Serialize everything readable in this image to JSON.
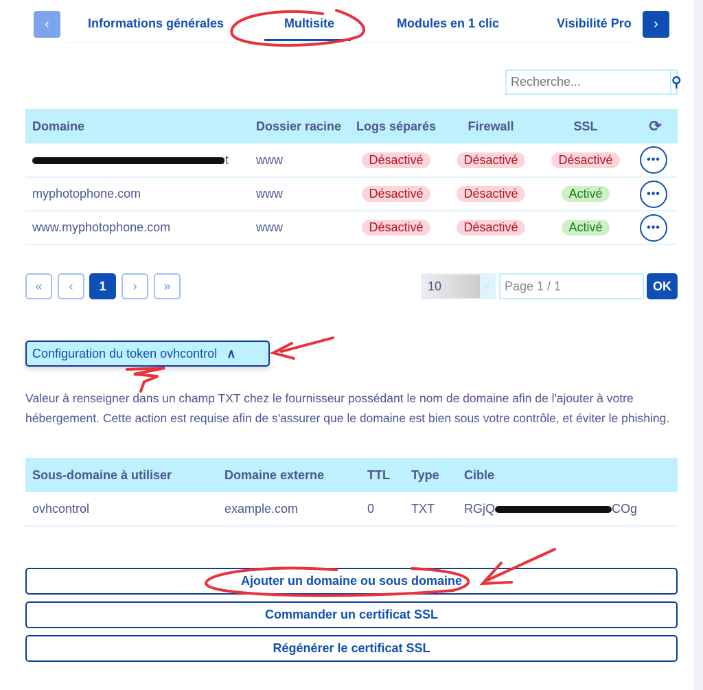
{
  "tabs": {
    "prev": "‹",
    "next": "›",
    "items": [
      "Informations générales",
      "Multisite",
      "Modules en 1 clic",
      "Visibilité Pro"
    ],
    "active": 1
  },
  "search": {
    "placeholder": "Recherche...",
    "icon": "search-icon"
  },
  "domains_table": {
    "headers": [
      "Domaine",
      "Dossier racine",
      "Logs séparés",
      "Firewall",
      "SSL"
    ],
    "refresh_icon": "refresh-icon",
    "rows": [
      {
        "domain": "…net",
        "root": "www",
        "logs": "Désactivé",
        "firewall": "Désactivé",
        "ssl": "Désactivé",
        "ssl_on": false
      },
      {
        "domain": "myphotophone.com",
        "root": "www",
        "logs": "Désactivé",
        "firewall": "Désactivé",
        "ssl": "Activé",
        "ssl_on": true
      },
      {
        "domain": "www.myphotophone.com",
        "root": "www",
        "logs": "Désactivé",
        "firewall": "Désactivé",
        "ssl": "Activé",
        "ssl_on": true
      }
    ],
    "more": "•••"
  },
  "pagination": {
    "first": "«",
    "prev": "‹",
    "current": "1",
    "next": "›",
    "last": "»",
    "page_size": "10",
    "page_input": "Page 1 / 1",
    "ok": "OK"
  },
  "token": {
    "toggle": "Configuration du token ovhcontrol",
    "description": "Valeur à renseigner dans un champ TXT chez le fournisseur possédant le nom de domaine afin de l'ajouter à votre hébergement. Cette action est requise afin de s'assurer que le domaine est bien sous votre contrôle, et éviter le phishing.",
    "headers": [
      "Sous-domaine à utiliser",
      "Domaine externe",
      "TTL",
      "Type",
      "Cible"
    ],
    "row": {
      "sub": "ovhcontrol",
      "ext": "example.com",
      "ttl": "0",
      "type": "TXT",
      "target_start": "RGjQ",
      "target_end": "COg"
    }
  },
  "actions": [
    "Ajouter un domaine ou sous domaine",
    "Commander un certificat SSL",
    "Régénérer le certificat SSL"
  ],
  "colors": {
    "primary": "#0f4fb5",
    "header_bg": "#bff0fd",
    "off": "#b8111d",
    "on": "#1f7a1f",
    "annotation": "#e8323c"
  }
}
